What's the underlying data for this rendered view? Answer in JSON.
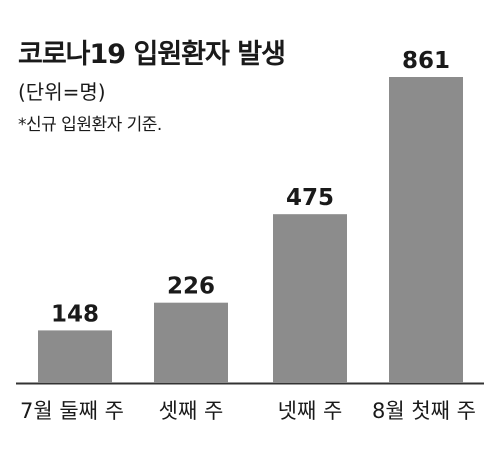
{
  "chart_data": {
    "type": "bar",
    "title": "코로나19 입원환자 발생",
    "unit": "(단위=명)",
    "note": "*신규 입원환자 기준.",
    "categories": [
      "7월 둘째 주",
      "셋째 주",
      "넷째 주",
      "8월 첫째 주"
    ],
    "values": [
      148,
      226,
      475,
      861
    ],
    "ylim": [
      0,
      861
    ],
    "grid": false,
    "bar_color": "#8c8c8c",
    "axis_color": "#333333"
  }
}
